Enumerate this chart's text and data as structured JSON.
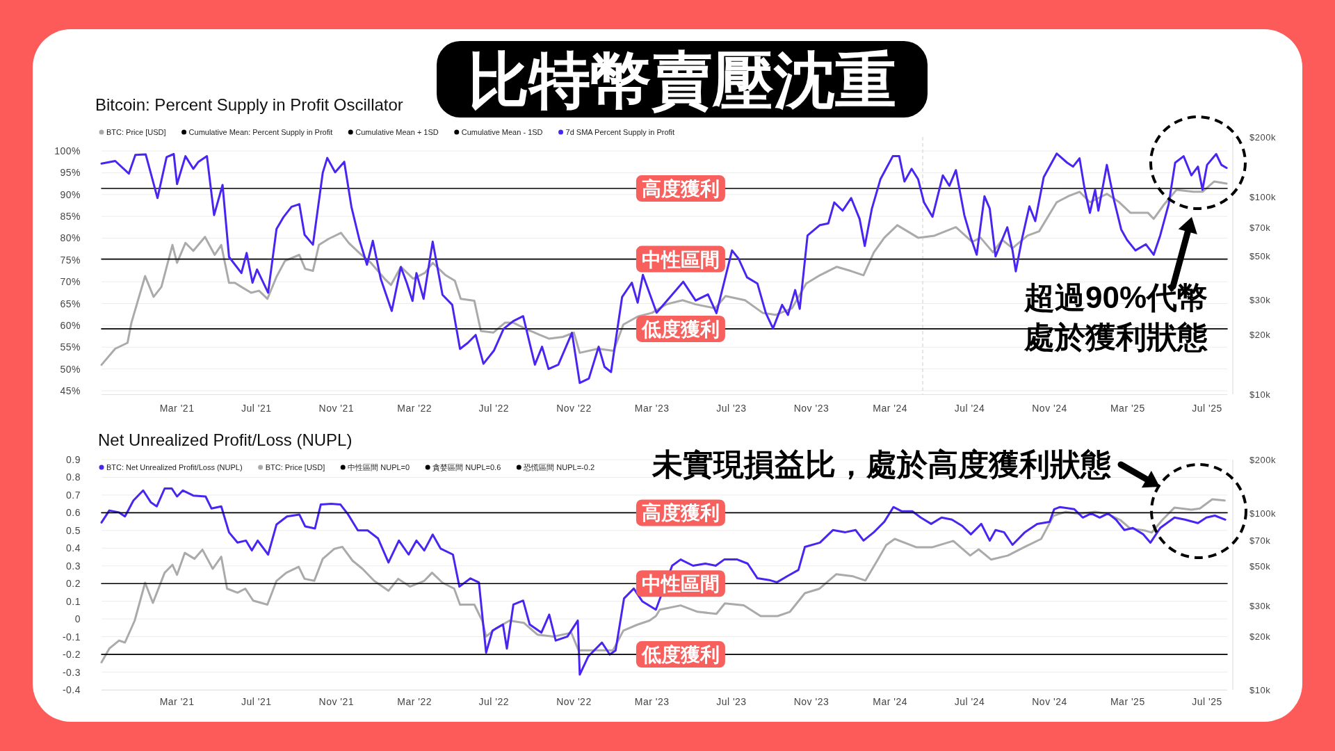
{
  "chart_data": [
    {
      "type": "line",
      "title": "比特幣賣壓沈重",
      "subtitle": "Bitcoin: Percent Supply in Profit Oscillator",
      "xlim": [
        "2020-11-05",
        "2025-08-01"
      ],
      "xticks": [
        {
          "value": "2021-03-01",
          "label": "Mar '21"
        },
        {
          "value": "2021-07-01",
          "label": "Jul '21"
        },
        {
          "value": "2021-11-01",
          "label": "Nov '21"
        },
        {
          "value": "2022-03-01",
          "label": "Mar '22"
        },
        {
          "value": "2022-07-01",
          "label": "Jul '22"
        },
        {
          "value": "2022-11-01",
          "label": "Nov '22"
        },
        {
          "value": "2023-03-01",
          "label": "Mar '23"
        },
        {
          "value": "2023-07-01",
          "label": "Jul '23"
        },
        {
          "value": "2023-11-01",
          "label": "Nov '23"
        },
        {
          "value": "2024-03-01",
          "label": "Mar '24"
        },
        {
          "value": "2024-07-01",
          "label": "Jul '24"
        },
        {
          "value": "2024-11-01",
          "label": "Nov '24"
        },
        {
          "value": "2025-03-01",
          "label": "Mar '25"
        },
        {
          "value": "2025-07-01",
          "label": "Jul '25"
        }
      ],
      "ylim": [
        44.2,
        103.2
      ],
      "yticks": [
        {
          "value": 45,
          "label": "45%"
        },
        {
          "value": 50,
          "label": "50%"
        },
        {
          "value": 55,
          "label": "55%"
        },
        {
          "value": 60,
          "label": "60%"
        },
        {
          "value": 65,
          "label": "65%"
        },
        {
          "value": 70,
          "label": "70%"
        },
        {
          "value": 75,
          "label": "75%"
        },
        {
          "value": 80,
          "label": "80%"
        },
        {
          "value": 85,
          "label": "85%"
        },
        {
          "value": 90,
          "label": "90%"
        },
        {
          "value": 95,
          "label": "95%"
        },
        {
          "value": 100,
          "label": "100%"
        }
      ],
      "y2lim": [
        10000,
        200000
      ],
      "y2ticks": [
        {
          "value": 10000,
          "label": "$10k"
        },
        {
          "value": 20000,
          "label": "$20k"
        },
        {
          "value": 30000,
          "label": "$30k"
        },
        {
          "value": 50000,
          "label": "$50k"
        },
        {
          "value": 70000,
          "label": "$70k"
        },
        {
          "value": 100000,
          "label": "$100k"
        },
        {
          "value": 200000,
          "label": "$200k"
        }
      ],
      "log": "y2",
      "grid": "y",
      "legend": "top left",
      "line_style": "solid",
      "ref_lines": [
        {
          "axis": "x",
          "value": "2024-04-20",
          "color": "#dddddd",
          "line_style": "dashed"
        }
      ],
      "series": [
        {
          "name": "BTC: Price [USD]",
          "color": "#aaaaaa",
          "axis": "y2",
          "x": [
            "2020-11-05",
            "2020-11-26",
            "2020-12-15",
            "2020-12-21",
            "2021-01-11",
            "2021-01-24",
            "2021-02-05",
            "2021-02-22",
            "2021-03-01",
            "2021-03-14",
            "2021-03-26",
            "2021-04-13",
            "2021-04-28",
            "2021-05-08",
            "2021-05-20",
            "2021-05-29",
            "2021-06-08",
            "2021-06-23",
            "2021-07-05",
            "2021-07-18",
            "2021-08-01",
            "2021-08-14",
            "2021-09-05",
            "2021-09-14",
            "2021-09-26",
            "2021-10-05",
            "2021-10-20",
            "2021-11-08",
            "2021-11-20",
            "2021-12-06",
            "2021-12-24",
            "2022-01-14",
            "2022-01-24",
            "2022-02-08",
            "2022-02-27",
            "2022-03-17",
            "2022-03-29",
            "2022-04-17",
            "2022-05-02",
            "2022-05-11",
            "2022-06-01",
            "2022-06-11",
            "2022-06-30",
            "2022-07-18",
            "2022-07-31",
            "2022-08-18",
            "2022-09-09",
            "2022-09-24",
            "2022-10-15",
            "2022-11-01",
            "2022-11-10",
            "2022-12-08",
            "2023-01-01",
            "2023-01-16",
            "2023-02-07",
            "2023-03-01",
            "2023-03-23",
            "2023-04-17",
            "2023-05-07",
            "2023-06-06",
            "2023-06-22",
            "2023-07-22",
            "2023-08-18",
            "2023-09-07",
            "2023-10-02",
            "2023-10-24",
            "2023-11-14",
            "2023-12-10",
            "2024-01-01",
            "2024-01-20",
            "2024-02-05",
            "2024-02-21",
            "2024-03-12",
            "2024-04-13",
            "2024-05-08",
            "2024-06-10",
            "2024-07-05",
            "2024-07-18",
            "2024-08-06",
            "2024-08-20",
            "2024-09-05",
            "2024-09-28",
            "2024-10-16",
            "2024-11-12",
            "2024-12-01",
            "2024-12-17",
            "2025-01-02",
            "2025-01-28",
            "2025-02-16",
            "2025-03-05",
            "2025-04-01",
            "2025-04-10",
            "2025-04-26",
            "2025-05-15",
            "2025-06-10",
            "2025-06-24",
            "2025-07-12",
            "2025-07-31"
          ],
          "values": [
            14100,
            17000,
            18200,
            23000,
            39600,
            31100,
            34900,
            56900,
            46200,
            58300,
            53100,
            62500,
            50700,
            56900,
            36600,
            36600,
            34900,
            32600,
            33400,
            30400,
            39300,
            47300,
            50700,
            43100,
            42100,
            56900,
            61100,
            65500,
            58300,
            51900,
            46200,
            38400,
            35700,
            44100,
            38400,
            41100,
            46200,
            40200,
            37500,
            30400,
            29700,
            20900,
            20500,
            23000,
            23000,
            21500,
            20000,
            19100,
            19500,
            20500,
            16200,
            17000,
            16600,
            22500,
            24700,
            25800,
            28500,
            29900,
            28500,
            27200,
            31400,
            29900,
            25800,
            25200,
            27200,
            36300,
            40000,
            44100,
            42000,
            40000,
            52200,
            61900,
            71600,
            61900,
            63400,
            70000,
            59000,
            61900,
            52200,
            60400,
            54800,
            63400,
            66700,
            93600,
            100700,
            105700,
            93600,
            103100,
            93600,
            82800,
            82800,
            77100,
            91200,
            108100,
            105700,
            105700,
            119200,
            116400
          ]
        },
        {
          "name": "Cumulative Mean: Percent Supply in Profit",
          "color": "#000000",
          "x": [
            "2020-11-05",
            "2025-08-01"
          ],
          "values": [
            75.2,
            75.2
          ]
        },
        {
          "name": "Cumulative Mean + 1SD",
          "color": "#000000",
          "x": [
            "2020-11-05",
            "2025-08-01"
          ],
          "values": [
            91.4,
            91.4
          ]
        },
        {
          "name": "Cumulative Mean - 1SD",
          "color": "#000000",
          "x": [
            "2020-11-05",
            "2025-08-01"
          ],
          "values": [
            59.2,
            59.2
          ]
        },
        {
          "name": "7d SMA Percent Supply in Profit",
          "color": "#4a25f2",
          "x": [
            "2020-11-05",
            "2020-11-26",
            "2020-12-17",
            "2020-12-27",
            "2021-01-12",
            "2021-01-30",
            "2021-02-13",
            "2021-02-24",
            "2021-03-01",
            "2021-03-14",
            "2021-03-26",
            "2021-04-03",
            "2021-04-16",
            "2021-04-27",
            "2021-05-10",
            "2021-05-20",
            "2021-06-08",
            "2021-06-16",
            "2021-06-25",
            "2021-07-02",
            "2021-07-19",
            "2021-08-01",
            "2021-08-12",
            "2021-08-24",
            "2021-09-05",
            "2021-09-13",
            "2021-09-26",
            "2021-10-11",
            "2021-10-18",
            "2021-10-30",
            "2021-11-13",
            "2021-11-24",
            "2021-12-06",
            "2021-12-18",
            "2021-12-27",
            "2022-01-08",
            "2022-01-25",
            "2022-02-08",
            "2022-02-17",
            "2022-02-26",
            "2022-03-04",
            "2022-03-15",
            "2022-03-29",
            "2022-04-13",
            "2022-04-28",
            "2022-05-10",
            "2022-05-22",
            "2022-06-03",
            "2022-06-15",
            "2022-07-01",
            "2022-07-16",
            "2022-07-31",
            "2022-08-15",
            "2022-09-02",
            "2022-09-13",
            "2022-09-23",
            "2022-10-08",
            "2022-10-29",
            "2022-11-10",
            "2022-11-24",
            "2022-12-09",
            "2022-12-18",
            "2022-12-28",
            "2023-01-14",
            "2023-01-29",
            "2023-02-07",
            "2023-02-15",
            "2023-03-08",
            "2023-04-18",
            "2023-05-07",
            "2023-05-26",
            "2023-06-08",
            "2023-07-02",
            "2023-07-12",
            "2023-07-25",
            "2023-08-10",
            "2023-08-23",
            "2023-09-03",
            "2023-09-17",
            "2023-09-26",
            "2023-10-07",
            "2023-10-14",
            "2023-10-26",
            "2023-11-14",
            "2023-11-27",
            "2023-12-06",
            "2023-12-19",
            "2024-01-01",
            "2024-01-14",
            "2024-01-22",
            "2024-02-02",
            "2024-02-15",
            "2024-03-05",
            "2024-03-15",
            "2024-03-23",
            "2024-04-03",
            "2024-04-13",
            "2024-04-22",
            "2024-05-05",
            "2024-05-21",
            "2024-05-31",
            "2024-06-10",
            "2024-06-23",
            "2024-07-03",
            "2024-07-12",
            "2024-07-24",
            "2024-08-01",
            "2024-08-10",
            "2024-08-20",
            "2024-08-28",
            "2024-09-05",
            "2024-09-10",
            "2024-09-20",
            "2024-10-01",
            "2024-10-10",
            "2024-10-23",
            "2024-11-12",
            "2024-11-28",
            "2024-12-07",
            "2024-12-17",
            "2024-12-25",
            "2025-01-02",
            "2025-01-10",
            "2025-01-15",
            "2025-01-28",
            "2025-02-08",
            "2025-02-19",
            "2025-02-28",
            "2025-03-13",
            "2025-03-29",
            "2025-04-10",
            "2025-04-20",
            "2025-05-03",
            "2025-05-13",
            "2025-05-26",
            "2025-06-07",
            "2025-06-17",
            "2025-06-24",
            "2025-07-01",
            "2025-07-15",
            "2025-07-23",
            "2025-07-31"
          ],
          "values": [
            97.1,
            97.7,
            94.8,
            99.1,
            99.2,
            89.2,
            98.6,
            99.3,
            92.4,
            98.8,
            95.9,
            97.5,
            98.8,
            85.3,
            92.2,
            75.7,
            72.0,
            76.6,
            69.8,
            72.8,
            67.5,
            82.1,
            84.9,
            87.2,
            87.8,
            80.8,
            78.5,
            95.0,
            98.4,
            95.1,
            97.5,
            87.2,
            79.8,
            73.9,
            79.4,
            70.7,
            63.3,
            73.4,
            69.8,
            65.6,
            72.0,
            66.1,
            79.2,
            67.0,
            64.7,
            54.6,
            56.0,
            57.8,
            51.2,
            54.2,
            59.2,
            61.0,
            62.1,
            51.0,
            55.1,
            50.0,
            51.0,
            58.3,
            46.8,
            47.8,
            55.1,
            50.5,
            49.3,
            66.5,
            69.8,
            65.2,
            71.6,
            62.9,
            70.0,
            65.7,
            67.1,
            62.8,
            77.2,
            75.3,
            71.0,
            69.6,
            62.8,
            59.3,
            64.7,
            62.4,
            68.1,
            63.8,
            80.6,
            83.0,
            83.4,
            88.2,
            86.3,
            89.2,
            84.4,
            78.2,
            86.8,
            93.5,
            98.8,
            98.8,
            93.0,
            95.9,
            93.5,
            88.2,
            84.9,
            94.4,
            92.0,
            95.6,
            85.3,
            80.1,
            76.2,
            89.6,
            86.8,
            75.8,
            79.6,
            82.5,
            77.2,
            72.4,
            80.1,
            87.3,
            83.9,
            94.0,
            99.4,
            97.3,
            96.4,
            98.3,
            91.1,
            85.8,
            91.1,
            86.3,
            96.8,
            88.7,
            82.0,
            79.6,
            77.2,
            78.6,
            76.2,
            80.6,
            87.8,
            97.3,
            98.8,
            94.4,
            96.4,
            91.1,
            96.8,
            99.3,
            96.8,
            96.1
          ]
        }
      ],
      "annotations": [
        {
          "text": "高度獲利",
          "x": "2023-04-14",
          "y": 91.4
        },
        {
          "text": "中性區間",
          "x": "2023-04-14",
          "y": 75.2
        },
        {
          "text": "低度獲利",
          "x": "2023-04-14",
          "y": 59.2
        },
        "超過90%代幣",
        "處於獲利狀態"
      ]
    },
    {
      "type": "line",
      "title": "Net Unrealized Profit/Loss (NUPL)",
      "xlim": [
        "2020-11-05",
        "2025-08-01"
      ],
      "xticks": [
        {
          "value": "2021-03-01",
          "label": "Mar '21"
        },
        {
          "value": "2021-07-01",
          "label": "Jul '21"
        },
        {
          "value": "2021-11-01",
          "label": "Nov '21"
        },
        {
          "value": "2022-03-01",
          "label": "Mar '22"
        },
        {
          "value": "2022-07-01",
          "label": "Jul '22"
        },
        {
          "value": "2022-11-01",
          "label": "Nov '22"
        },
        {
          "value": "2023-03-01",
          "label": "Mar '23"
        },
        {
          "value": "2023-07-01",
          "label": "Jul '23"
        },
        {
          "value": "2023-11-01",
          "label": "Nov '23"
        },
        {
          "value": "2024-03-01",
          "label": "Mar '24"
        },
        {
          "value": "2024-07-01",
          "label": "Jul '24"
        },
        {
          "value": "2024-11-01",
          "label": "Nov '24"
        },
        {
          "value": "2025-03-01",
          "label": "Mar '25"
        },
        {
          "value": "2025-07-01",
          "label": "Jul '25"
        }
      ],
      "ylim": [
        -0.4,
        0.9
      ],
      "yticks": [
        -0.4,
        -0.3,
        -0.2,
        -0.1,
        0,
        0.1,
        0.2,
        0.3,
        0.4,
        0.5,
        0.6,
        0.7,
        0.8,
        0.9
      ],
      "y2lim": [
        10000,
        200000
      ],
      "y2ticks": [
        {
          "value": 10000,
          "label": "$10k"
        },
        {
          "value": 20000,
          "label": "$20k"
        },
        {
          "value": 30000,
          "label": "$30k"
        },
        {
          "value": 50000,
          "label": "$50k"
        },
        {
          "value": 70000,
          "label": "$70k"
        },
        {
          "value": 100000,
          "label": "$100k"
        },
        {
          "value": 200000,
          "label": "$200k"
        }
      ],
      "log": "y2",
      "grid": "y",
      "legend": "top left",
      "line_style": "solid",
      "series": [
        {
          "name": "BTC: Net Unrealized Profit/Loss (NUPL)",
          "color": "#4a25f2",
          "x": [
            "2020-11-05",
            "2020-11-17",
            "2020-12-02",
            "2020-12-11",
            "2020-12-24",
            "2021-01-08",
            "2021-01-20",
            "2021-01-29",
            "2021-02-10",
            "2021-02-21",
            "2021-03-01",
            "2021-03-10",
            "2021-03-26",
            "2021-04-14",
            "2021-04-23",
            "2021-05-08",
            "2021-05-20",
            "2021-06-02",
            "2021-06-15",
            "2021-06-24",
            "2021-07-03",
            "2021-07-19",
            "2021-08-01",
            "2021-08-17",
            "2021-09-05",
            "2021-09-14",
            "2021-09-29",
            "2021-10-08",
            "2021-10-24",
            "2021-11-07",
            "2021-11-19",
            "2021-12-04",
            "2021-12-19",
            "2022-01-04",
            "2022-01-20",
            "2022-02-05",
            "2022-02-20",
            "2022-03-04",
            "2022-03-16",
            "2022-03-29",
            "2022-04-10",
            "2022-04-29",
            "2022-05-09",
            "2022-05-26",
            "2022-06-08",
            "2022-06-19",
            "2022-06-29",
            "2022-07-15",
            "2022-07-21",
            "2022-07-31",
            "2022-08-15",
            "2022-08-25",
            "2022-09-12",
            "2022-09-24",
            "2022-10-04",
            "2022-10-22",
            "2022-11-07",
            "2022-11-10",
            "2022-11-23",
            "2022-12-14",
            "2022-12-26",
            "2023-01-04",
            "2023-01-17",
            "2023-02-01",
            "2023-02-14",
            "2023-03-07",
            "2023-04-01",
            "2023-04-14",
            "2023-05-03",
            "2023-05-22",
            "2023-06-07",
            "2023-06-20",
            "2023-07-10",
            "2023-07-26",
            "2023-08-10",
            "2023-08-30",
            "2023-09-09",
            "2023-09-25",
            "2023-10-12",
            "2023-10-22",
            "2023-11-14",
            "2023-12-04",
            "2023-12-23",
            "2024-01-08",
            "2024-01-20",
            "2024-02-05",
            "2024-02-21",
            "2024-03-06",
            "2024-03-19",
            "2024-04-04",
            "2024-04-17",
            "2024-05-03",
            "2024-05-19",
            "2024-06-04",
            "2024-06-20",
            "2024-07-03",
            "2024-07-19",
            "2024-08-01",
            "2024-08-10",
            "2024-08-23",
            "2024-09-05",
            "2024-09-24",
            "2024-10-13",
            "2024-11-01",
            "2024-11-08",
            "2024-11-17",
            "2024-12-09",
            "2024-12-22",
            "2025-01-04",
            "2025-01-17",
            "2025-01-30",
            "2025-02-11",
            "2025-02-24",
            "2025-03-09",
            "2025-03-25",
            "2025-04-05",
            "2025-04-20",
            "2025-05-12",
            "2025-05-28",
            "2025-06-17",
            "2025-06-30",
            "2025-07-13",
            "2025-07-29"
          ],
          "values": [
            0.545,
            0.613,
            0.602,
            0.579,
            0.669,
            0.726,
            0.658,
            0.636,
            0.737,
            0.737,
            0.692,
            0.726,
            0.697,
            0.692,
            0.624,
            0.636,
            0.489,
            0.432,
            0.443,
            0.387,
            0.443,
            0.364,
            0.534,
            0.579,
            0.59,
            0.523,
            0.511,
            0.647,
            0.651,
            0.647,
            0.59,
            0.5,
            0.5,
            0.455,
            0.319,
            0.443,
            0.364,
            0.443,
            0.387,
            0.477,
            0.398,
            0.364,
            0.183,
            0.229,
            0.206,
            -0.19,
            -0.065,
            -0.031,
            -0.167,
            0.082,
            0.104,
            -0.031,
            -0.077,
            0.025,
            -0.122,
            -0.099,
            -0.009,
            -0.314,
            -0.212,
            -0.133,
            -0.201,
            -0.178,
            0.116,
            0.172,
            0.1,
            0.053,
            0.301,
            0.336,
            0.301,
            0.313,
            0.301,
            0.336,
            0.336,
            0.313,
            0.23,
            0.218,
            0.207,
            0.242,
            0.277,
            0.407,
            0.431,
            0.502,
            0.49,
            0.502,
            0.443,
            0.49,
            0.549,
            0.632,
            0.608,
            0.608,
            0.573,
            0.537,
            0.573,
            0.561,
            0.525,
            0.478,
            0.537,
            0.443,
            0.502,
            0.49,
            0.419,
            0.49,
            0.537,
            0.549,
            0.62,
            0.632,
            0.62,
            0.573,
            0.596,
            0.573,
            0.596,
            0.561,
            0.502,
            0.514,
            0.478,
            0.431,
            0.514,
            0.573,
            0.561,
            0.542,
            0.573,
            0.584,
            0.561
          ]
        },
        {
          "name": "BTC: Price [USD]",
          "color": "#aaaaaa",
          "axis": "y2",
          "x": [
            "2020-11-05",
            "2020-11-17",
            "2020-12-02",
            "2020-12-11",
            "2020-12-26",
            "2021-01-11",
            "2021-01-23",
            "2021-02-10",
            "2021-02-22",
            "2021-03-01",
            "2021-03-13",
            "2021-03-28",
            "2021-04-09",
            "2021-04-25",
            "2021-05-08",
            "2021-05-17",
            "2021-06-02",
            "2021-06-14",
            "2021-06-26",
            "2021-07-18",
            "2021-08-01",
            "2021-08-16",
            "2021-09-04",
            "2021-09-13",
            "2021-09-28",
            "2021-10-11",
            "2021-10-29",
            "2021-11-10",
            "2021-11-26",
            "2021-12-11",
            "2021-12-29",
            "2022-01-20",
            "2022-02-04",
            "2022-02-22",
            "2022-03-16",
            "2022-03-28",
            "2022-04-13",
            "2022-05-01",
            "2022-05-10",
            "2022-06-01",
            "2022-06-13",
            "2022-06-19",
            "2022-07-04",
            "2022-07-25",
            "2022-08-16",
            "2022-09-06",
            "2022-10-01",
            "2022-10-28",
            "2022-11-08",
            "2022-12-07",
            "2022-12-31",
            "2023-01-16",
            "2023-02-06",
            "2023-02-25",
            "2023-03-07",
            "2023-03-13",
            "2023-04-14",
            "2023-05-10",
            "2023-06-08",
            "2023-06-21",
            "2023-07-20",
            "2023-08-15",
            "2023-09-10",
            "2023-09-29",
            "2023-10-22",
            "2023-11-13",
            "2023-12-09",
            "2024-01-04",
            "2024-01-23",
            "2024-02-11",
            "2024-02-24",
            "2024-03-08",
            "2024-04-10",
            "2024-05-05",
            "2024-06-06",
            "2024-07-02",
            "2024-07-15",
            "2024-08-03",
            "2024-08-29",
            "2024-09-23",
            "2024-10-19",
            "2024-11-07",
            "2024-11-26",
            "2024-12-16",
            "2025-01-10",
            "2025-01-29",
            "2025-02-18",
            "2025-03-05",
            "2025-03-28",
            "2025-04-07",
            "2025-04-23",
            "2025-05-12",
            "2025-06-07",
            "2025-06-20",
            "2025-07-09",
            "2025-07-28"
          ],
          "values": [
            14300,
            17100,
            19000,
            18500,
            24600,
            40300,
            31000,
            45900,
            50900,
            44700,
            59400,
            55000,
            62000,
            48300,
            56500,
            37300,
            35400,
            37300,
            31900,
            30300,
            41300,
            45900,
            49600,
            42400,
            41300,
            55000,
            62700,
            64300,
            53600,
            48300,
            41300,
            36300,
            42400,
            38300,
            41300,
            45900,
            40300,
            37300,
            30300,
            30300,
            24600,
            20000,
            22200,
            24600,
            23900,
            20500,
            20000,
            21000,
            16700,
            16700,
            16700,
            21600,
            23300,
            24600,
            26100,
            28400,
            30000,
            27600,
            26900,
            30800,
            30000,
            26100,
            26100,
            27600,
            35200,
            37200,
            45000,
            43800,
            41500,
            54500,
            65800,
            71300,
            64000,
            64000,
            69400,
            57400,
            62200,
            54500,
            57400,
            64000,
            71300,
            96200,
            101500,
            98800,
            101500,
            98800,
            91000,
            81600,
            79400,
            77400,
            91000,
            107200,
            104300,
            105900,
            119400,
            117500
          ]
        },
        {
          "name": "中性區間 NUPL=0",
          "color": "#000000",
          "x": [
            "2020-11-05",
            "2025-08-01"
          ],
          "values": [
            0.2,
            0.2
          ]
        },
        {
          "name": "貪婪區間 NUPL=0.6",
          "color": "#000000",
          "x": [
            "2020-11-05",
            "2025-08-01"
          ],
          "values": [
            0.6,
            0.6
          ]
        },
        {
          "name": "恐慌區間 NUPL=-0.2",
          "color": "#000000",
          "x": [
            "2020-11-05",
            "2025-08-01"
          ],
          "values": [
            -0.2,
            -0.2
          ]
        }
      ],
      "annotations": [
        {
          "text": "高度獲利",
          "x": "2023-04-14",
          "y": 0.6
        },
        {
          "text": "中性區間",
          "x": "2023-04-14",
          "y": 0.2
        },
        {
          "text": "低度獲利",
          "x": "2023-04-14",
          "y": -0.2
        },
        "未實現損益比，處於高度獲利狀態"
      ]
    }
  ]
}
